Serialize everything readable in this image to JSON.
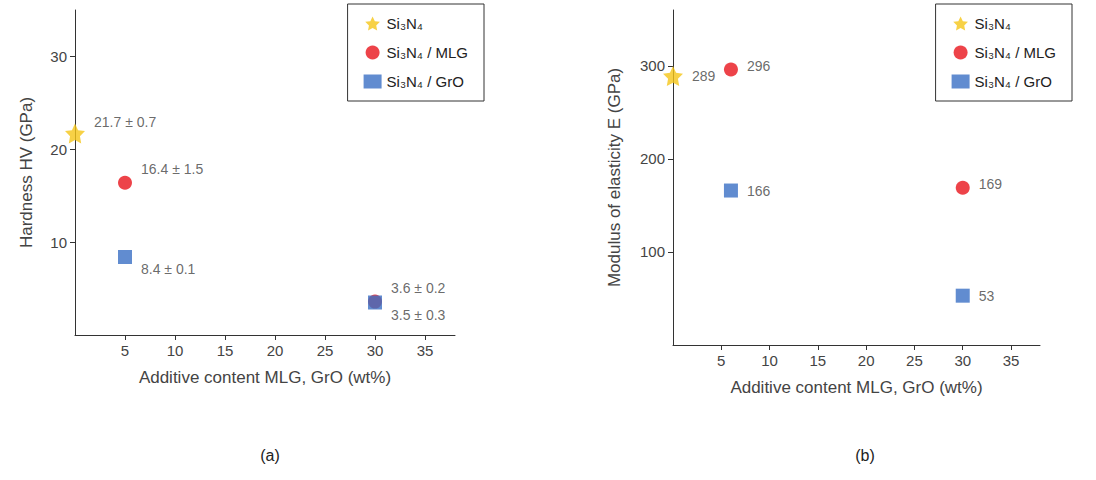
{
  "chart_data": [
    {
      "type": "scatter",
      "title": "(a)",
      "x_label": "Additive content MLG, GrO (wt%)",
      "y_label": "Hardness HV (GPa)",
      "xlim": [
        0,
        38
      ],
      "xticks": [
        5,
        10,
        15,
        20,
        25,
        30,
        35
      ],
      "ylim": [
        0,
        35
      ],
      "yticks": [
        10,
        20,
        30
      ],
      "grid": false,
      "legend": "upper right",
      "data_labels": true,
      "series": [
        {
          "name": "Si₃N₄",
          "color": "#f5c518",
          "marker": "star",
          "x": [
            0
          ],
          "values": [
            21.7
          ],
          "value_labels": [
            "21.7 ± 0.7"
          ]
        },
        {
          "name": "Si₃N₄ / MLG",
          "color": "#e8141b",
          "marker": "circle",
          "x": [
            5,
            30
          ],
          "values": [
            16.4,
            3.6
          ],
          "value_labels": [
            "16.4 ± 1.5",
            "3.6 ± 0.2"
          ]
        },
        {
          "name": "Si₃N₄ / GrO",
          "color": "#3a6fc4",
          "marker": "square",
          "x": [
            5,
            30
          ],
          "values": [
            8.4,
            3.5
          ],
          "value_labels": [
            "8.4 ± 0.1",
            "3.5 ± 0.3"
          ]
        }
      ]
    },
    {
      "type": "scatter",
      "title": "(b)",
      "x_label": "Additive content MLG, GrO (wt%)",
      "y_label": "Modulus of elasticity E (GPa)",
      "xlim": [
        0,
        38
      ],
      "xticks": [
        5,
        10,
        15,
        20,
        25,
        30,
        35
      ],
      "ylim": [
        0,
        360
      ],
      "yticks": [
        100,
        200,
        300
      ],
      "grid": false,
      "legend": "upper right",
      "data_labels": true,
      "series": [
        {
          "name": "Si₃N₄",
          "color": "#f5c518",
          "marker": "star",
          "x": [
            0
          ],
          "values": [
            289
          ]
        },
        {
          "name": "Si₃N₄ / MLG",
          "color": "#e8141b",
          "marker": "circle",
          "x": [
            6,
            30
          ],
          "values": [
            296,
            169
          ]
        },
        {
          "name": "Si₃N₄ / GrO",
          "color": "#3a6fc4",
          "marker": "square",
          "x": [
            6,
            30
          ],
          "values": [
            166,
            53
          ]
        }
      ]
    }
  ]
}
